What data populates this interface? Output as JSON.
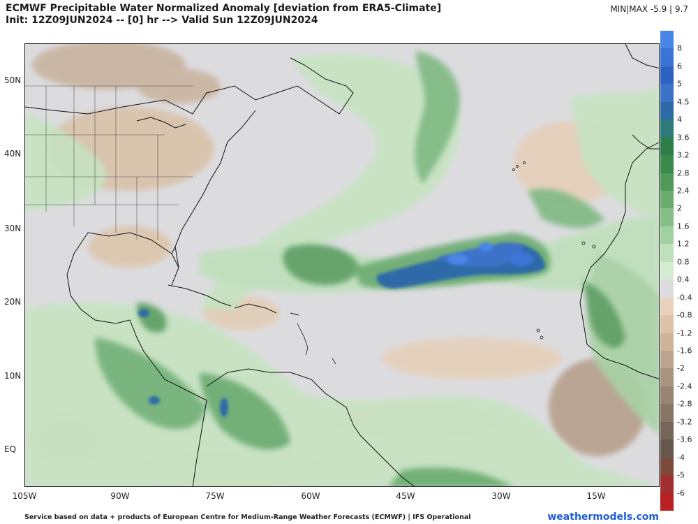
{
  "header": {
    "title_line1": "ECMWF Precipitable Water Normalized Anomaly [deviation from ERA5-Climate]",
    "title_line2": "Init: 12Z09JUN2024 -- [0] hr --> Valid Sun 12Z09JUN2024",
    "minmax": "MIN|MAX  -5.9 | 9.7"
  },
  "map": {
    "lat_labels": [
      "50N",
      "40N",
      "30N",
      "20N",
      "10N",
      "EQ"
    ],
    "lon_labels": [
      "105W",
      "90W",
      "75W",
      "60W",
      "45W",
      "30W",
      "15W"
    ]
  },
  "colorbar": {
    "labels": [
      "8",
      "6",
      "5",
      "4.5",
      "4",
      "3.6",
      "3.2",
      "2.8",
      "2.4",
      "2",
      "1.6",
      "1.2",
      "0.8",
      "0.4",
      "-0.4",
      "-0.8",
      "-1.2",
      "-1.6",
      "-2",
      "-2.4",
      "-2.8",
      "-3.2",
      "-3.6",
      "-4",
      "-5",
      "-6"
    ],
    "colors": [
      "#4a86e8",
      "#3b74d6",
      "#2e62c2",
      "#3d72c9",
      "#2f6aa8",
      "#2c7a7a",
      "#2f7e49",
      "#3b8a4b",
      "#4f9a5a",
      "#6aab6f",
      "#86be88",
      "#a3d0a1",
      "#bfe0bb",
      "#d6ecd2",
      "#dcdcdf",
      "#e8d2bd",
      "#ddc3a9",
      "#cdb49b",
      "#bba58e",
      "#a99480",
      "#988473",
      "#877566",
      "#766659",
      "#66574c",
      "#7a4a3d",
      "#a03030",
      "#b82222"
    ]
  },
  "footer": {
    "credit": "Service based on data + products of European Centre for Medium-Range Weather Forecasts (ECMWF) | IFS Operational",
    "brand": "weathermodels.com"
  }
}
